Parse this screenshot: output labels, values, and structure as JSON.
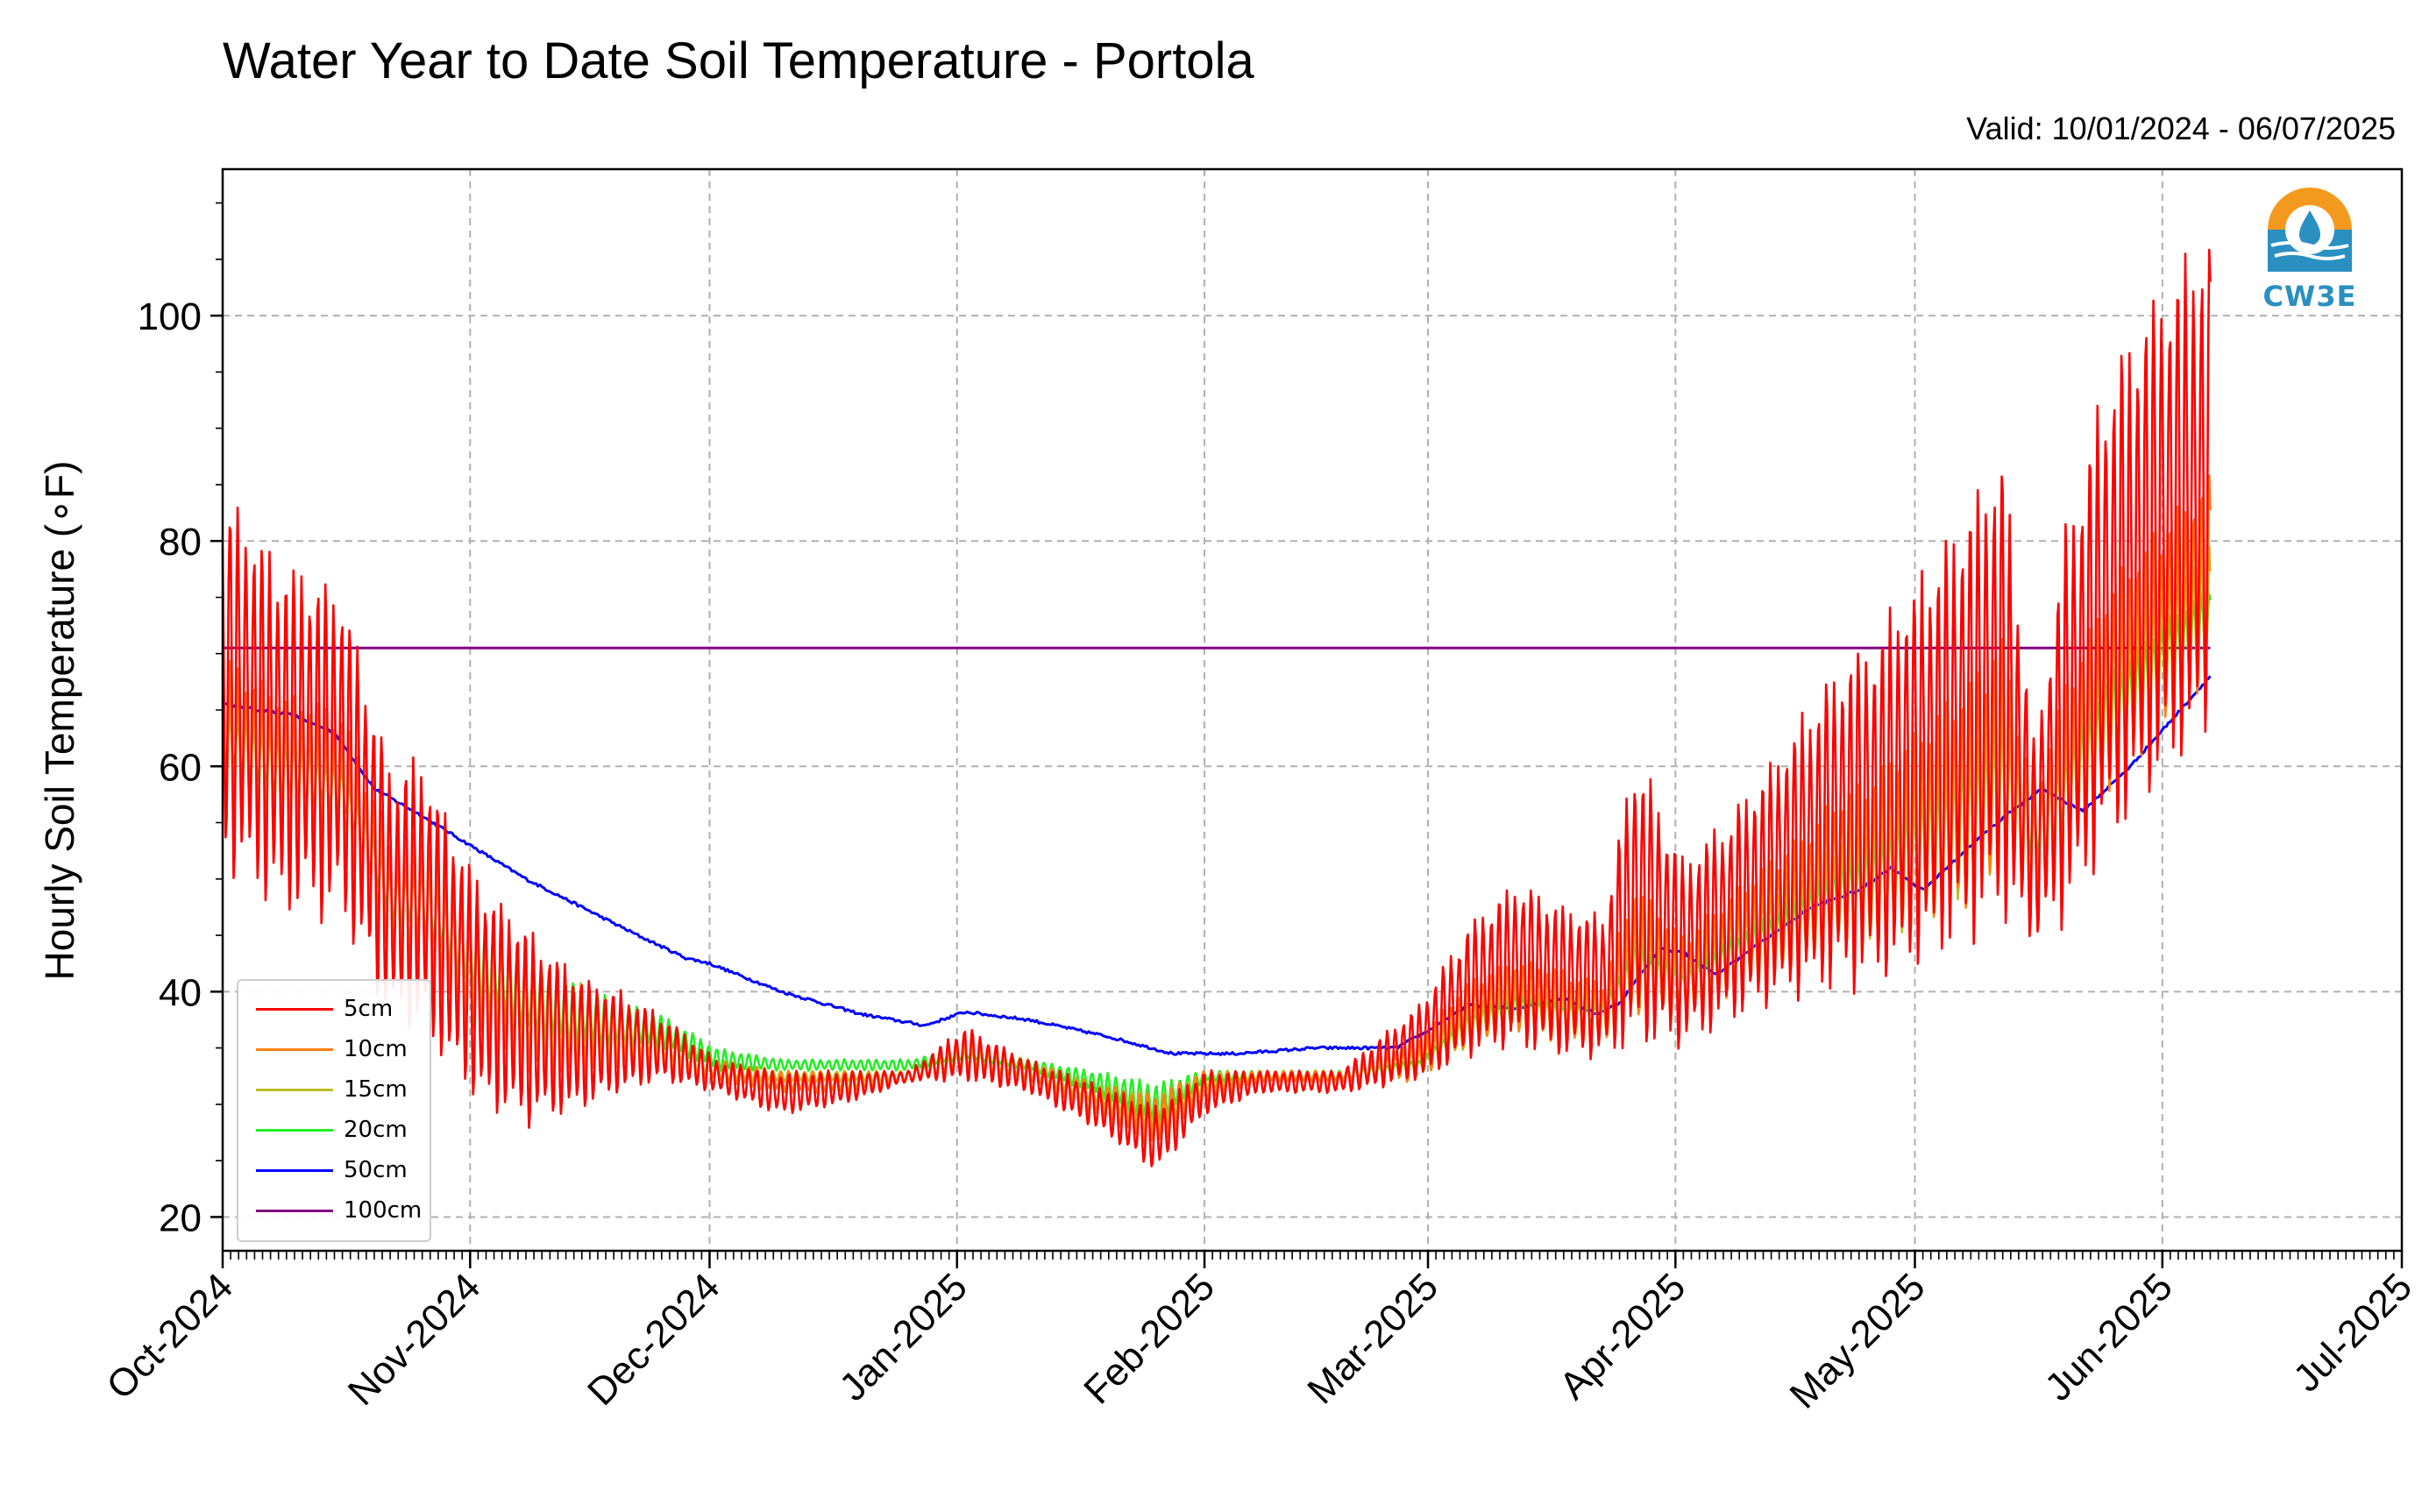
{
  "chart_data": {
    "type": "line",
    "title": "Water Year to Date Soil Temperature - Portola",
    "subtitle": "Valid: 10/01/2024 - 06/07/2025",
    "ylabel": "Hourly Soil Temperature (∘F)",
    "xlabel": "",
    "ylim": [
      17,
      113
    ],
    "xlim": [
      "2024-10-01",
      "2025-07-01"
    ],
    "yticks": [
      20,
      40,
      60,
      80,
      100
    ],
    "xticks": [
      "Oct-2024",
      "Nov-2024",
      "Dec-2024",
      "Jan-2025",
      "Feb-2025",
      "Mar-2025",
      "Apr-2025",
      "May-2025",
      "Jun-2025",
      "Jul-2025"
    ],
    "grid": true,
    "legend_position": "bottom-left",
    "series": [
      {
        "name": "5cm",
        "color": "#ff0000",
        "envelope": {
          "dates": [
            "2024-10-01",
            "2024-10-08",
            "2024-10-16",
            "2024-10-22",
            "2024-10-26",
            "2024-11-02",
            "2024-11-08",
            "2024-11-14",
            "2024-11-20",
            "2024-11-25",
            "2024-12-02",
            "2024-12-10",
            "2024-12-18",
            "2024-12-26",
            "2025-01-02",
            "2025-01-10",
            "2025-01-18",
            "2025-01-26",
            "2025-02-01",
            "2025-02-08",
            "2025-02-18",
            "2025-02-28",
            "2025-03-06",
            "2025-03-12",
            "2025-03-18",
            "2025-03-23",
            "2025-03-27",
            "2025-04-02",
            "2025-04-08",
            "2025-04-15",
            "2025-04-22",
            "2025-04-26",
            "2025-05-02",
            "2025-05-08",
            "2025-05-12",
            "2025-05-16",
            "2025-05-20",
            "2025-05-25",
            "2025-06-01",
            "2025-06-07"
          ],
          "max": [
            85,
            79,
            76,
            60,
            61,
            50,
            46,
            42,
            40,
            38,
            34,
            33,
            33,
            33,
            37,
            34,
            32,
            30,
            33,
            33,
            33,
            39,
            46,
            50,
            48,
            47,
            62,
            52,
            56,
            63,
            70,
            72,
            78,
            84,
            89,
            62,
            82,
            95,
            104,
            108
          ],
          "min": [
            51,
            47,
            46,
            37,
            36,
            30,
            28,
            29,
            31,
            32,
            31,
            29,
            30,
            32,
            32,
            31,
            28,
            24,
            29,
            31,
            31,
            32,
            34,
            35,
            34,
            34,
            35,
            35,
            37,
            39,
            40,
            40,
            42,
            44,
            46,
            44,
            46,
            52,
            58,
            62
          ]
        }
      },
      {
        "name": "10cm",
        "color": "#ff7f0e",
        "envelope": {
          "dates": [
            "2024-10-01",
            "2024-10-08",
            "2024-10-16",
            "2024-10-22",
            "2024-10-26",
            "2024-11-02",
            "2024-11-08",
            "2024-11-14",
            "2024-11-20",
            "2024-11-25",
            "2024-12-02",
            "2024-12-10",
            "2024-12-18",
            "2024-12-26",
            "2025-01-02",
            "2025-01-10",
            "2025-01-18",
            "2025-01-26",
            "2025-02-01",
            "2025-02-08",
            "2025-02-18",
            "2025-02-28",
            "2025-03-06",
            "2025-03-12",
            "2025-03-18",
            "2025-03-23",
            "2025-03-27",
            "2025-04-02",
            "2025-04-08",
            "2025-04-15",
            "2025-04-22",
            "2025-04-26",
            "2025-05-02",
            "2025-05-08",
            "2025-05-12",
            "2025-05-16",
            "2025-05-20",
            "2025-05-25",
            "2025-06-01",
            "2025-06-07"
          ],
          "max": [
            70,
            67,
            65,
            54,
            55,
            47,
            44,
            41,
            39,
            37,
            34,
            33,
            33,
            33,
            36,
            34,
            32,
            31,
            33,
            33,
            33,
            36,
            41,
            43,
            42,
            41,
            50,
            45,
            49,
            53,
            58,
            60,
            64,
            68,
            72,
            58,
            68,
            76,
            82,
            86
          ],
          "min": [
            56,
            53,
            52,
            42,
            41,
            35,
            32,
            32,
            33,
            33,
            32,
            31,
            31,
            32,
            33,
            32,
            29,
            26,
            30,
            32,
            32,
            32,
            35,
            36,
            35,
            35,
            37,
            37,
            39,
            41,
            43,
            43,
            45,
            47,
            49,
            47,
            50,
            56,
            62,
            66
          ]
        }
      },
      {
        "name": "15cm",
        "color": "#bcbd22",
        "envelope": {
          "dates": [
            "2024-10-01",
            "2024-10-08",
            "2024-10-16",
            "2024-10-22",
            "2024-10-26",
            "2024-11-02",
            "2024-11-08",
            "2024-11-14",
            "2024-11-20",
            "2024-11-25",
            "2024-12-02",
            "2024-12-10",
            "2024-12-18",
            "2024-12-26",
            "2025-01-02",
            "2025-01-10",
            "2025-01-18",
            "2025-01-26",
            "2025-02-01",
            "2025-02-08",
            "2025-02-18",
            "2025-02-28",
            "2025-03-06",
            "2025-03-12",
            "2025-03-18",
            "2025-03-23",
            "2025-03-27",
            "2025-04-02",
            "2025-04-08",
            "2025-04-15",
            "2025-04-22",
            "2025-04-26",
            "2025-05-02",
            "2025-05-08",
            "2025-05-12",
            "2025-05-16",
            "2025-05-20",
            "2025-05-25",
            "2025-06-01",
            "2025-06-07"
          ],
          "max": [
            67,
            64,
            62,
            52,
            52,
            46,
            43,
            41,
            39,
            37,
            34,
            33,
            33,
            33,
            35,
            34,
            32,
            31,
            33,
            33,
            33,
            35,
            39,
            41,
            40,
            40,
            47,
            43,
            47,
            50,
            54,
            56,
            60,
            63,
            67,
            57,
            64,
            72,
            77,
            80
          ],
          "min": [
            58,
            55,
            54,
            44,
            43,
            37,
            34,
            33,
            34,
            34,
            32,
            32,
            32,
            32,
            33,
            32,
            30,
            27,
            31,
            32,
            32,
            33,
            35,
            37,
            36,
            36,
            38,
            38,
            40,
            42,
            44,
            44,
            46,
            48,
            51,
            49,
            52,
            58,
            64,
            68
          ]
        }
      },
      {
        "name": "20cm",
        "color": "#22ee22",
        "envelope": {
          "dates": [
            "2024-10-01",
            "2024-10-08",
            "2024-10-16",
            "2024-10-22",
            "2024-10-26",
            "2024-11-02",
            "2024-11-08",
            "2024-11-14",
            "2024-11-20",
            "2024-11-25",
            "2024-12-02",
            "2024-12-10",
            "2024-12-18",
            "2024-12-26",
            "2025-01-02",
            "2025-01-10",
            "2025-01-18",
            "2025-01-26",
            "2025-02-01",
            "2025-02-08",
            "2025-02-18",
            "2025-02-28",
            "2025-03-06",
            "2025-03-12",
            "2025-03-18",
            "2025-03-23",
            "2025-03-27",
            "2025-04-02",
            "2025-04-08",
            "2025-04-15",
            "2025-04-22",
            "2025-04-26",
            "2025-05-02",
            "2025-05-08",
            "2025-05-12",
            "2025-05-16",
            "2025-05-20",
            "2025-05-25",
            "2025-06-01",
            "2025-06-07"
          ],
          "max": [
            65,
            63,
            60,
            51,
            51,
            46,
            43,
            41,
            39,
            38,
            35,
            34,
            34,
            34,
            35,
            34,
            33,
            32,
            33,
            33,
            33,
            34,
            38,
            40,
            39,
            39,
            45,
            42,
            45,
            48,
            52,
            54,
            58,
            61,
            65,
            57,
            62,
            68,
            73,
            76
          ],
          "min": [
            60,
            57,
            56,
            46,
            45,
            39,
            36,
            35,
            35,
            35,
            33,
            33,
            33,
            33,
            34,
            33,
            31,
            28,
            32,
            32,
            32,
            33,
            36,
            37,
            37,
            37,
            39,
            39,
            41,
            43,
            45,
            45,
            48,
            50,
            53,
            51,
            54,
            60,
            66,
            70
          ]
        }
      },
      {
        "name": "50cm",
        "color": "#0000ff",
        "x": [
          "2024-10-01",
          "2024-10-10",
          "2024-10-15",
          "2024-10-20",
          "2024-10-25",
          "2024-11-01",
          "2024-11-08",
          "2024-11-15",
          "2024-11-22",
          "2024-11-28",
          "2024-12-01",
          "2024-12-10",
          "2024-12-20",
          "2024-12-28",
          "2025-01-02",
          "2025-01-10",
          "2025-01-20",
          "2025-01-28",
          "2025-02-05",
          "2025-02-15",
          "2025-02-25",
          "2025-03-01",
          "2025-03-06",
          "2025-03-12",
          "2025-03-18",
          "2025-03-22",
          "2025-03-25",
          "2025-03-30",
          "2025-04-02",
          "2025-04-06",
          "2025-04-12",
          "2025-04-18",
          "2025-04-24",
          "2025-04-28",
          "2025-05-02",
          "2025-05-08",
          "2025-05-13",
          "2025-05-17",
          "2025-05-22",
          "2025-05-28",
          "2025-06-02",
          "2025-06-07"
        ],
        "values": [
          65.5,
          64.5,
          63,
          58,
          56,
          53,
          50,
          47.5,
          45,
          43,
          42.5,
          40,
          38,
          37,
          38.2,
          37.5,
          36,
          34.5,
          34.5,
          35,
          35,
          36.5,
          38.8,
          38.5,
          39.5,
          38,
          39,
          43.8,
          43.5,
          41.5,
          44.5,
          47.5,
          49,
          51,
          49,
          53,
          56,
          58,
          56,
          60,
          64,
          68
        ]
      },
      {
        "name": "100cm",
        "color": "#800080",
        "x": [
          "2024-10-01",
          "2025-06-07"
        ],
        "values": [
          70.5,
          70.5
        ]
      }
    ]
  },
  "logo": {
    "text": "CW3E",
    "primary_color": "#2a8fc1",
    "accent_color": "#f39a1e"
  }
}
